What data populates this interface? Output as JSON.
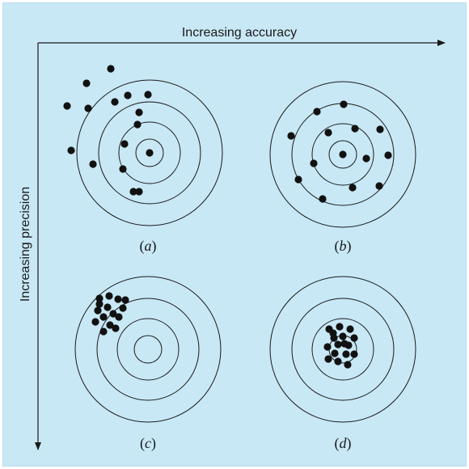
{
  "axes": {
    "horizontal_label": "Increasing accuracy",
    "vertical_label": "Increasing precision"
  },
  "panels": [
    {
      "label_open": "(",
      "label_letter": "a",
      "label_close": ")",
      "target_center": [
        0,
        0
      ],
      "shots": [
        [
          0,
          0
        ],
        [
          -33,
          20
        ],
        [
          -31,
          -11
        ],
        [
          -15,
          -35
        ],
        [
          -13,
          -50
        ],
        [
          -43,
          -63
        ],
        [
          -76,
          -55
        ],
        [
          -102,
          -58
        ],
        [
          -78,
          -86
        ],
        [
          -48,
          -104
        ],
        [
          -27,
          -71
        ],
        [
          -2,
          -72
        ],
        [
          -97,
          -3
        ],
        [
          -70,
          14
        ],
        [
          -20,
          48
        ],
        [
          -13,
          48
        ]
      ]
    },
    {
      "label_open": "(",
      "label_letter": "b",
      "label_close": ")",
      "target_center": [
        0,
        0
      ],
      "shots": [
        [
          0,
          0
        ],
        [
          1,
          -62
        ],
        [
          -32,
          -53
        ],
        [
          -18,
          -27
        ],
        [
          15,
          -32
        ],
        [
          46,
          -31
        ],
        [
          56,
          1
        ],
        [
          29,
          5
        ],
        [
          -36,
          11
        ],
        [
          -64,
          -23
        ],
        [
          -55,
          31
        ],
        [
          -25,
          55
        ],
        [
          12,
          41
        ],
        [
          45,
          39
        ]
      ]
    },
    {
      "label_open": "(",
      "label_letter": "c",
      "label_close": ")",
      "target_center": [
        0,
        0
      ],
      "shots": [
        [
          -60,
          -63
        ],
        [
          -48,
          -66
        ],
        [
          -37,
          -62
        ],
        [
          -31,
          -51
        ],
        [
          -50,
          -52
        ],
        [
          -62,
          -48
        ],
        [
          -43,
          -44
        ],
        [
          -55,
          -40
        ],
        [
          -65,
          -34
        ],
        [
          -47,
          -30
        ],
        [
          -36,
          -40
        ],
        [
          -40,
          -26
        ],
        [
          -55,
          -22
        ],
        [
          -60,
          -56
        ],
        [
          -28,
          -61
        ]
      ]
    },
    {
      "label_open": "(",
      "label_letter": "d",
      "label_close": ")",
      "target_center": [
        0,
        0
      ],
      "shots": [
        [
          -17,
          -25
        ],
        [
          -4,
          -28
        ],
        [
          9,
          -25
        ],
        [
          14,
          -14
        ],
        [
          -11,
          -14
        ],
        [
          0,
          -16
        ],
        [
          -6,
          -6
        ],
        [
          7,
          -5
        ],
        [
          -19,
          -3
        ],
        [
          -10,
          5
        ],
        [
          4,
          6
        ],
        [
          14,
          6
        ],
        [
          -6,
          15
        ],
        [
          6,
          19
        ],
        [
          -18,
          12
        ],
        [
          -12,
          -20
        ],
        [
          2,
          -7
        ]
      ]
    }
  ]
}
